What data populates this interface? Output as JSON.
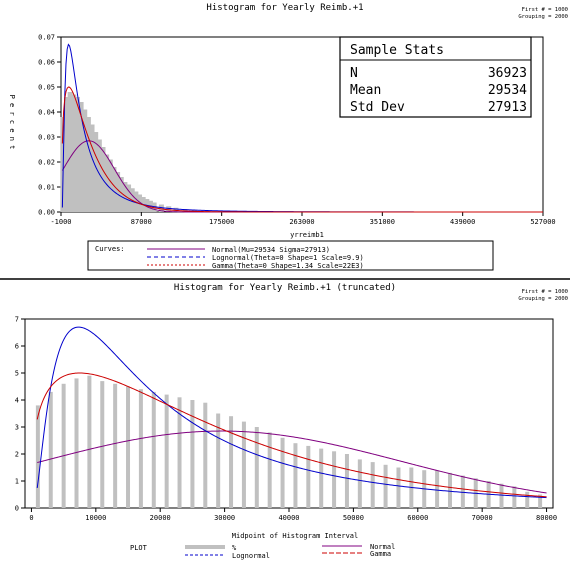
{
  "panel1": {
    "title": "Histogram for Yearly Reimb.+1",
    "corner_note": [
      "First # = 1000",
      "Grouping = 2000"
    ],
    "ylabel": "P e r c e n t",
    "xlabel": "yrreimb1",
    "stats_box": {
      "heading": "Sample Stats",
      "rows": [
        {
          "label": "N",
          "value": "36923"
        },
        {
          "label": "Mean",
          "value": "29534"
        },
        {
          "label": "Std Dev",
          "value": "27913"
        }
      ]
    },
    "legend": {
      "title": "Curves:",
      "items": [
        {
          "text": "Normal(Mu=29534 Sigma=27913)",
          "color": "#800080",
          "dash": "solid"
        },
        {
          "text": "Lognormal(Theta=0 Shape=1 Scale=9.9)",
          "color": "#0000cc",
          "dash": "4,3"
        },
        {
          "text": "Gamma(Theta=0 Shape=1.34 Scale=22E3)",
          "color": "#cc0000",
          "dash": "2,2"
        }
      ]
    }
  },
  "panel2": {
    "title": "Histogram for Yearly Reimb.+1 (truncated)",
    "corner_note": [
      "First # = 1000",
      "Grouping = 2000"
    ],
    "xlabel": "Midpoint of Histogram Interval",
    "legend": {
      "title": "PLOT",
      "items": [
        {
          "text": "%",
          "color": "#c0c0c0",
          "kind": "bar"
        },
        {
          "text": "Normal",
          "color": "#800080",
          "kind": "line"
        },
        {
          "text": "Lognormal",
          "color": "#0000cc",
          "kind": "line"
        },
        {
          "text": "Gamma",
          "color": "#cc0000",
          "kind": "line"
        }
      ]
    }
  },
  "chart_data": [
    {
      "type": "bar",
      "title": "Histogram for Yearly Reimb.+1",
      "xlabel": "yrreimb1",
      "ylabel": "P e r c e n t",
      "xlim": [
        -1000,
        527000
      ],
      "ylim": [
        0,
        0.07
      ],
      "xticks": [
        -1000,
        87000,
        175000,
        263000,
        351000,
        439000,
        527000
      ],
      "xtick_labels": [
        "-1000",
        "87000",
        "175000",
        "263000",
        "351000",
        "439000",
        "527000"
      ],
      "yticks": [
        0,
        0.01,
        0.02,
        0.03,
        0.04,
        0.05,
        0.06,
        0.07
      ],
      "ytick_labels": [
        "0.00",
        "0.01",
        "0.02",
        "0.03",
        "0.04",
        "0.05",
        "0.06",
        "0.07"
      ],
      "histogram": {
        "x": [
          1000,
          5000,
          9000,
          13000,
          17000,
          21000,
          25000,
          29000,
          33000,
          37000,
          41000,
          45000,
          49000,
          53000,
          57000,
          61000,
          65000,
          69000,
          73000,
          77000,
          81000,
          85000,
          89000,
          93000,
          97000,
          101000,
          109000,
          117000,
          125000,
          135000,
          145000,
          160000,
          180000,
          200000
        ],
        "values": [
          0.038,
          0.046,
          0.048,
          0.047,
          0.046,
          0.044,
          0.041,
          0.038,
          0.035,
          0.032,
          0.029,
          0.026,
          0.023,
          0.021,
          0.018,
          0.016,
          0.014,
          0.012,
          0.011,
          0.0095,
          0.0082,
          0.007,
          0.006,
          0.0052,
          0.0045,
          0.0038,
          0.003,
          0.0023,
          0.0017,
          0.0012,
          0.0008,
          0.0005,
          0.0003,
          0.0002
        ]
      },
      "series": [
        {
          "name": "Normal(Mu=29534 Sigma=27913)",
          "color": "#800080",
          "dist": "normal",
          "mu": 29534,
          "sigma": 27913,
          "peak": 0.0285
        },
        {
          "name": "Lognormal(Theta=0 Shape=1 Scale=9.9)",
          "color": "#0000cc",
          "dist": "lognormal",
          "shape": 1,
          "scale": 9.9,
          "peak": 0.067
        },
        {
          "name": "Gamma(Theta=0 Shape=1.34 Scale=22E3)",
          "color": "#cc0000",
          "dist": "gamma",
          "shape": 1.34,
          "scale": 22000,
          "peak": 0.05
        }
      ]
    },
    {
      "type": "bar",
      "title": "Histogram for Yearly Reimb.+1 (truncated)",
      "xlabel": "Midpoint of Histogram Interval",
      "ylabel": "",
      "xlim": [
        -1000,
        81000
      ],
      "ylim": [
        0,
        7
      ],
      "xticks": [
        0,
        10000,
        20000,
        30000,
        40000,
        50000,
        60000,
        70000,
        80000
      ],
      "xtick_labels": [
        "0",
        "10000",
        "20000",
        "30000",
        "40000",
        "50000",
        "60000",
        "70000",
        "80000"
      ],
      "yticks": [
        0,
        1,
        2,
        3,
        4,
        5,
        6,
        7
      ],
      "ytick_labels": [
        "0",
        "1",
        "2",
        "3",
        "4",
        "5",
        "6",
        "7"
      ],
      "histogram": {
        "x": [
          1000,
          3000,
          5000,
          7000,
          9000,
          11000,
          13000,
          15000,
          17000,
          19000,
          21000,
          23000,
          25000,
          27000,
          29000,
          31000,
          33000,
          35000,
          37000,
          39000,
          41000,
          43000,
          45000,
          47000,
          49000,
          51000,
          53000,
          55000,
          57000,
          59000,
          61000,
          63000,
          65000,
          67000,
          69000,
          71000,
          73000,
          75000,
          77000,
          79000
        ],
        "values": [
          3.8,
          4.3,
          4.6,
          4.8,
          4.9,
          4.7,
          4.6,
          4.5,
          4.4,
          4.3,
          4.2,
          4.1,
          4.0,
          3.9,
          3.5,
          3.4,
          3.2,
          3.0,
          2.8,
          2.6,
          2.4,
          2.3,
          2.2,
          2.1,
          2.0,
          1.8,
          1.7,
          1.6,
          1.5,
          1.5,
          1.4,
          1.4,
          1.3,
          1.2,
          1.1,
          1.0,
          0.9,
          0.8,
          0.6,
          0.5
        ]
      },
      "series": [
        {
          "name": "Normal",
          "color": "#800080",
          "dist": "normal",
          "mu": 29534,
          "sigma": 27913,
          "peak": 2.85
        },
        {
          "name": "Lognormal",
          "color": "#0000cc",
          "dist": "lognormal",
          "shape": 1,
          "scale": 9.9,
          "peak": 6.7
        },
        {
          "name": "Gamma",
          "color": "#cc0000",
          "dist": "gamma",
          "shape": 1.34,
          "scale": 22000,
          "peak": 5.0
        }
      ]
    }
  ]
}
